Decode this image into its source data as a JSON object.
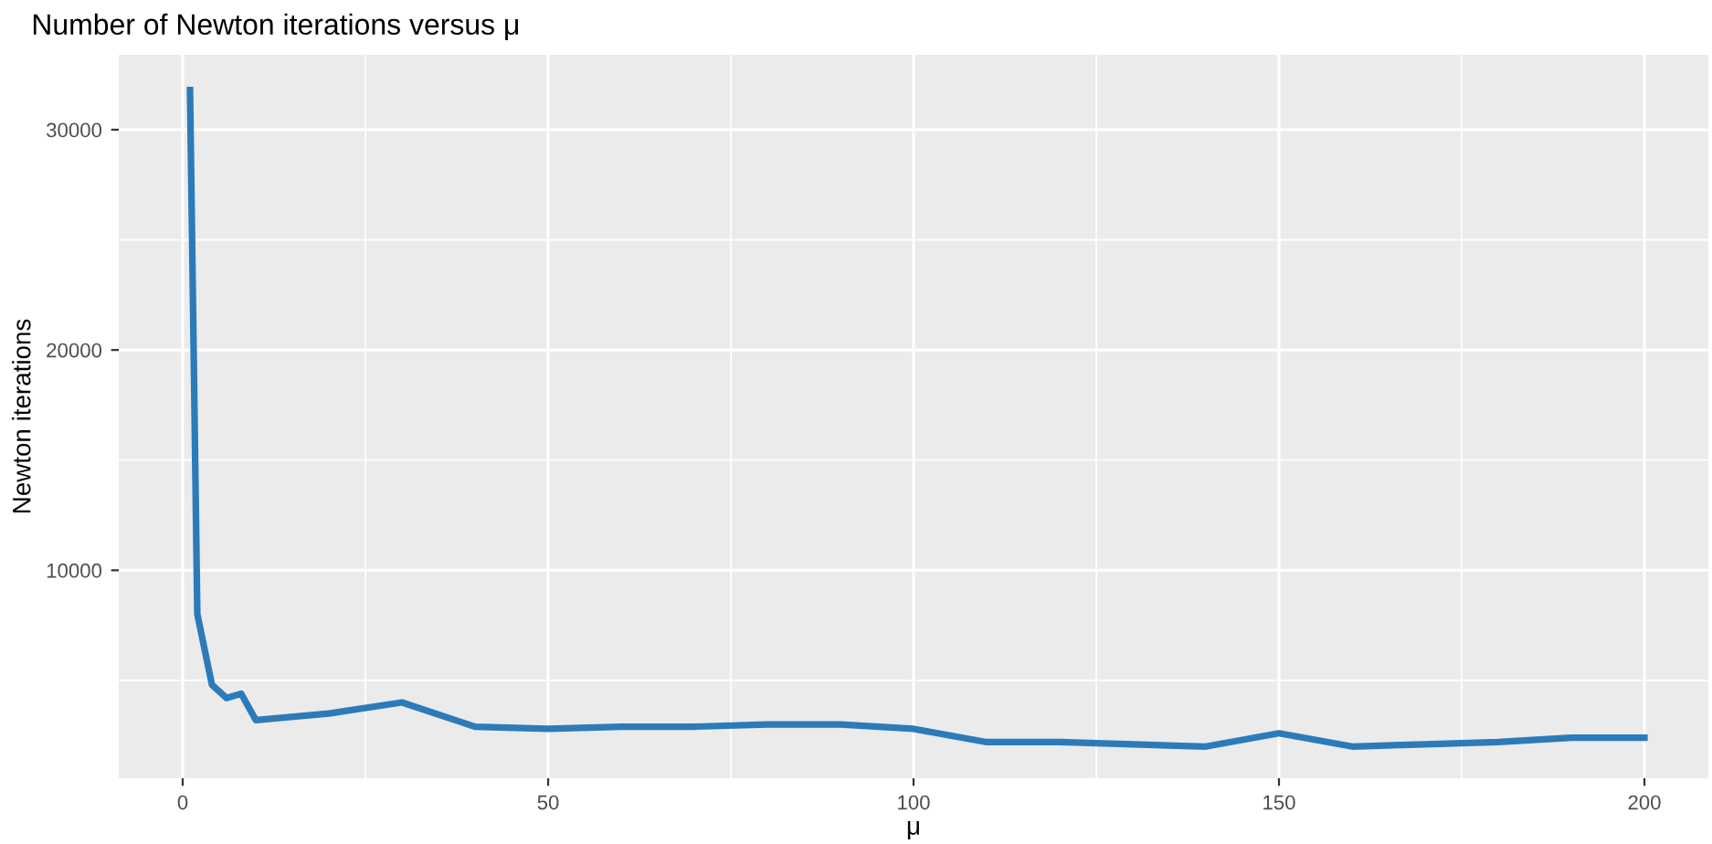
{
  "chart_data": {
    "type": "line",
    "title": "Number of Newton iterations versus μ",
    "xlabel": "μ",
    "ylabel": "Newton iterations",
    "x": [
      1,
      2,
      4,
      6,
      8,
      10,
      20,
      30,
      40,
      50,
      60,
      70,
      80,
      90,
      100,
      110,
      120,
      130,
      140,
      150,
      160,
      170,
      180,
      190,
      200
    ],
    "series": [
      {
        "color": "#2b7bba",
        "values": [
          31800,
          8000,
          4800,
          4200,
          4400,
          3200,
          3500,
          4000,
          2900,
          2800,
          2900,
          2900,
          3000,
          3000,
          2800,
          2200,
          2200,
          2100,
          2000,
          2600,
          2000,
          2100,
          2200,
          2400,
          2400
        ]
      }
    ],
    "xlim": [
      -8.75,
      208.75
    ],
    "ylim": [
      560,
      33400
    ],
    "xticks": [
      0,
      50,
      100,
      150,
      200
    ],
    "yticks": [
      10000,
      20000,
      30000
    ],
    "grid": true,
    "legend": false
  }
}
